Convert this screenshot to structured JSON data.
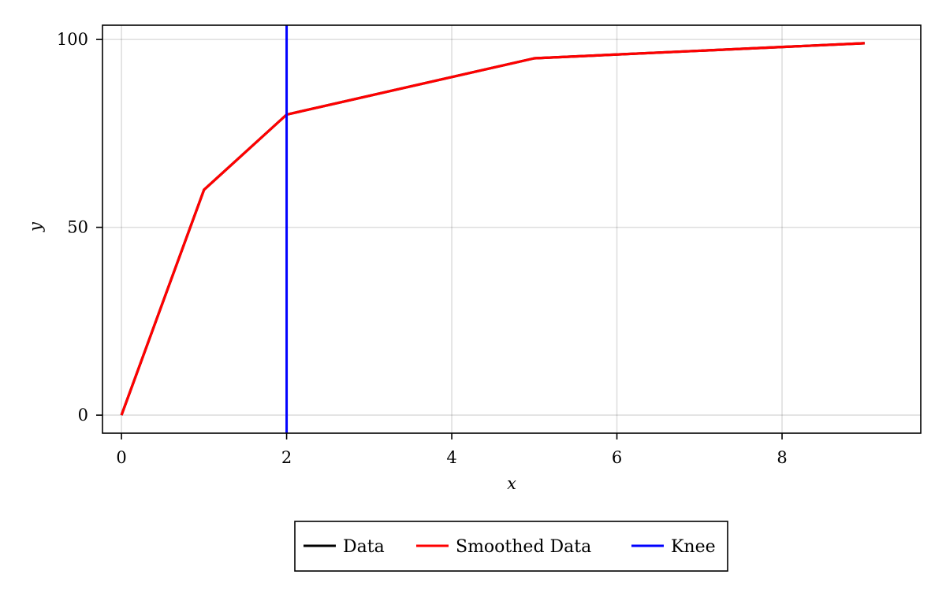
{
  "chart_data": {
    "type": "line",
    "xlabel": "x",
    "ylabel": "y",
    "xlim": [
      -0.23,
      9.68
    ],
    "ylim": [
      -4.8,
      103.8
    ],
    "xticks": [
      0,
      2,
      4,
      6,
      8
    ],
    "yticks": [
      0,
      50,
      100
    ],
    "grid": true,
    "legend_position": "bottom-center",
    "series": [
      {
        "name": "Data",
        "color": "#000000",
        "x": [
          0,
          1,
          2,
          5,
          9
        ],
        "y": [
          0,
          60,
          80,
          95,
          99
        ]
      },
      {
        "name": "Smoothed Data",
        "color": "#ff0000",
        "x": [
          0,
          1,
          2,
          5,
          9
        ],
        "y": [
          0,
          60,
          80,
          95,
          99
        ]
      }
    ],
    "vlines": [
      {
        "name": "Knee",
        "color": "#0000ff",
        "x": 2
      }
    ]
  }
}
